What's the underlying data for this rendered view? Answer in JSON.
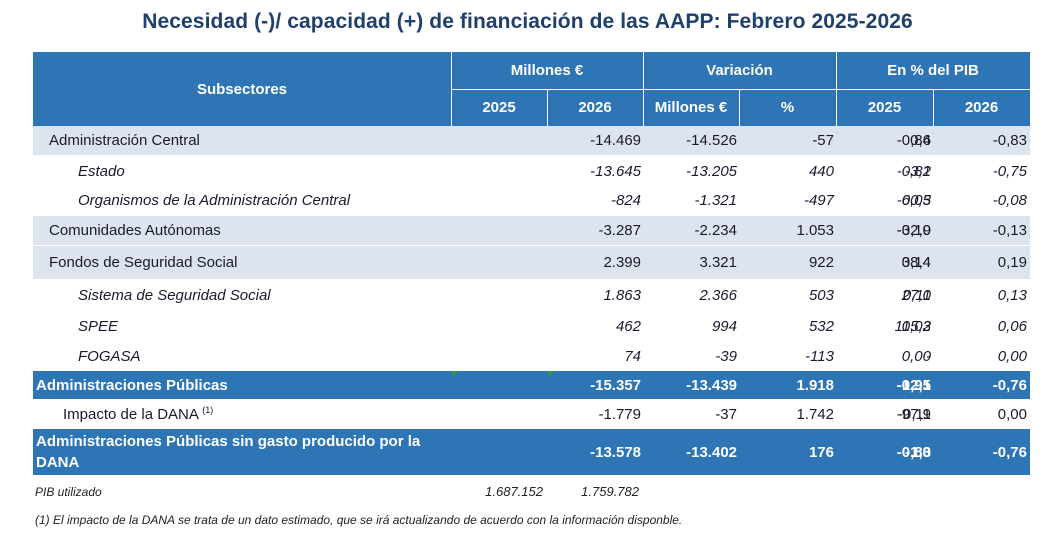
{
  "title": "Necesidad (-)/ capacidad (+) de financiación de las AAPP:  Febrero 2025-2026",
  "header": {
    "subsectores": "Subsectores",
    "millones": "Millones €",
    "variacion": "Variación",
    "pib": "En % del PIB",
    "y2025": "2025",
    "y2026": "2026",
    "var_millones": "Millones €",
    "var_pct": "%",
    "pib2025": "2025",
    "pib2026": "2026"
  },
  "rows": [
    {
      "label": "Administración Central",
      "v": [
        "-14.469",
        "-14.526",
        "-57",
        "0,4",
        "-0,86",
        "-0,83"
      ]
    },
    {
      "label": "Estado",
      "v": [
        "-13.645",
        "-13.205",
        "440",
        "-3,2",
        "-0,81",
        "-0,75"
      ]
    },
    {
      "label": "Organismos de la Administración Central",
      "v": [
        "-824",
        "-1.321",
        "-497",
        "60,3",
        "-0,05",
        "-0,08"
      ]
    },
    {
      "label": "Comunidades Autónomas",
      "v": [
        "-3.287",
        "-2.234",
        "1.053",
        "-32,0",
        "-0,19",
        "-0,13"
      ]
    },
    {
      "label": "Fondos de Seguridad Social",
      "v": [
        "2.399",
        "3.321",
        "922",
        "38,4",
        "0,14",
        "0,19"
      ]
    },
    {
      "label": "Sistema de Seguridad Social",
      "v": [
        "1.863",
        "2.366",
        "503",
        "27,0",
        "0,11",
        "0,13"
      ]
    },
    {
      "label": "SPEE",
      "v": [
        "462",
        "994",
        "532",
        "115,2",
        "0,03",
        "0,06"
      ]
    },
    {
      "label": "FOGASA",
      "v": [
        "74",
        "-39",
        "-113",
        "-",
        "0,00",
        "0,00"
      ]
    },
    {
      "label": "Administraciones Públicas",
      "v": [
        "-15.357",
        "-13.439",
        "1.918",
        "-12,5",
        "-0,91",
        "-0,76"
      ]
    },
    {
      "label": "Impacto de la DANA",
      "sup": "(1)",
      "v": [
        "-1.779",
        "-37",
        "1.742",
        "-97,9",
        "-0,11",
        "0,00"
      ]
    },
    {
      "label": "Administraciones Públicas sin gasto producido por la DANA",
      "v": [
        "-13.578",
        "-13.402",
        "176",
        "-1,3",
        "-0,80",
        "-0,76"
      ]
    }
  ],
  "pib": {
    "label": "PIB utilizado",
    "v2025": "1.687.152",
    "v2026": "1.759.782"
  },
  "note": "(1) El impacto de la DANA se trata de un dato estimado, que se irá actualizando de acuerdo con la información disponble."
}
